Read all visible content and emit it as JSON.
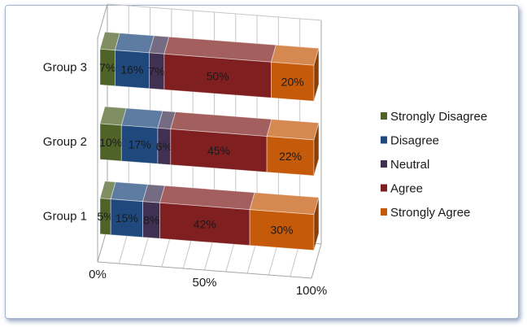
{
  "chart_data": {
    "type": "bar",
    "orientation": "horizontal",
    "stacked": "100%",
    "style": "3d",
    "categories": [
      "Group 1",
      "Group 2",
      "Group 3"
    ],
    "series": [
      {
        "name": "Strongly Disagree",
        "color": "#4f6228",
        "values": [
          5,
          10,
          7
        ]
      },
      {
        "name": "Disagree",
        "color": "#1f497d",
        "values": [
          15,
          17,
          16
        ]
      },
      {
        "name": "Neutral",
        "color": "#403152",
        "values": [
          8,
          6,
          7
        ]
      },
      {
        "name": "Agree",
        "color": "#7f1f1f",
        "values": [
          42,
          45,
          50
        ]
      },
      {
        "name": "Strongly Agree",
        "color": "#c55a0a",
        "values": [
          30,
          22,
          20
        ]
      }
    ],
    "data_labels": [
      [
        "5%",
        "15%",
        "8%",
        "42%",
        "30%"
      ],
      [
        "10%",
        "17%",
        "6%",
        "45%",
        "22%"
      ],
      [
        "7%",
        "16%",
        "7%",
        "50%",
        "20%"
      ]
    ],
    "x_tick_labels": [
      "0%",
      "50%",
      "100%"
    ],
    "xlim": [
      0,
      100
    ],
    "grid": true,
    "legend_position": "right"
  }
}
